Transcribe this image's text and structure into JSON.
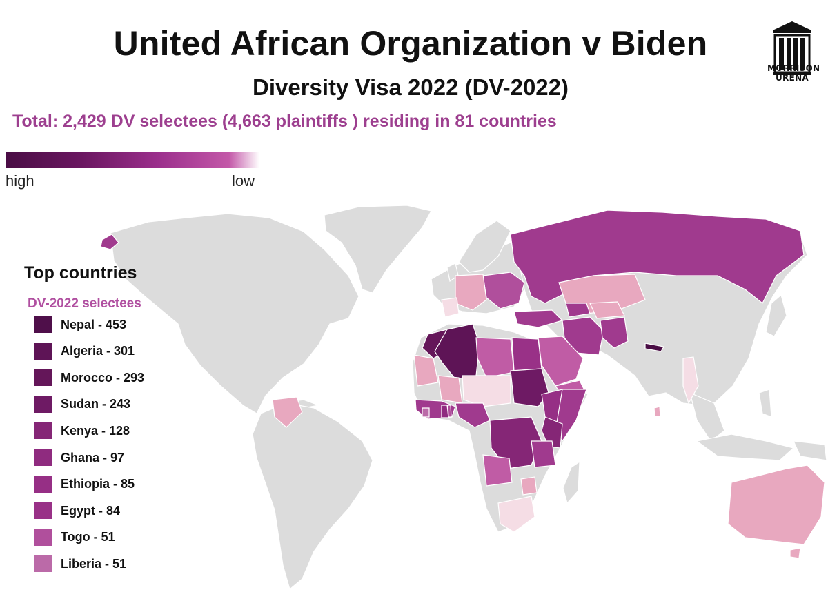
{
  "header": {
    "title": "United African Organization v Biden",
    "subtitle": "Diversity Visa 2022 (DV-2022)",
    "total": "Total: 2,429 DV selectees (4,663 plaintiffs ) residing in 81 countries"
  },
  "logo": {
    "icon": "pillars-building-icon",
    "line1": "MORRISON",
    "line2": "URENA"
  },
  "scale": {
    "high_label": "high",
    "low_label": "low",
    "high_color": "#4a0d45",
    "low_color": "#ffffff"
  },
  "legend": {
    "title": "Top countries",
    "subtitle": "DV-2022 selectees",
    "items": [
      {
        "label": "Nepal - 453",
        "color": "#4f0f4a"
      },
      {
        "label": "Algeria - 301",
        "color": "#5e1456"
      },
      {
        "label": "Morocco - 293",
        "color": "#641659"
      },
      {
        "label": "Sudan - 243",
        "color": "#6e1a64"
      },
      {
        "label": "Kenya - 128",
        "color": "#852676"
      },
      {
        "label": "Ghana - 97",
        "color": "#8f2b7f"
      },
      {
        "label": "Ethiopia - 85",
        "color": "#962f85"
      },
      {
        "label": "Egypt - 84",
        "color": "#993187"
      },
      {
        "label": "Togo - 51",
        "color": "#b04f9c"
      },
      {
        "label": "Liberia - 51",
        "color": "#bb6aa8"
      }
    ]
  },
  "colors": {
    "map_land": "#dcdcdc",
    "map_border": "#ffffff",
    "light_pink": "#e8a8bf",
    "very_light_pink": "#f5dde5"
  }
}
